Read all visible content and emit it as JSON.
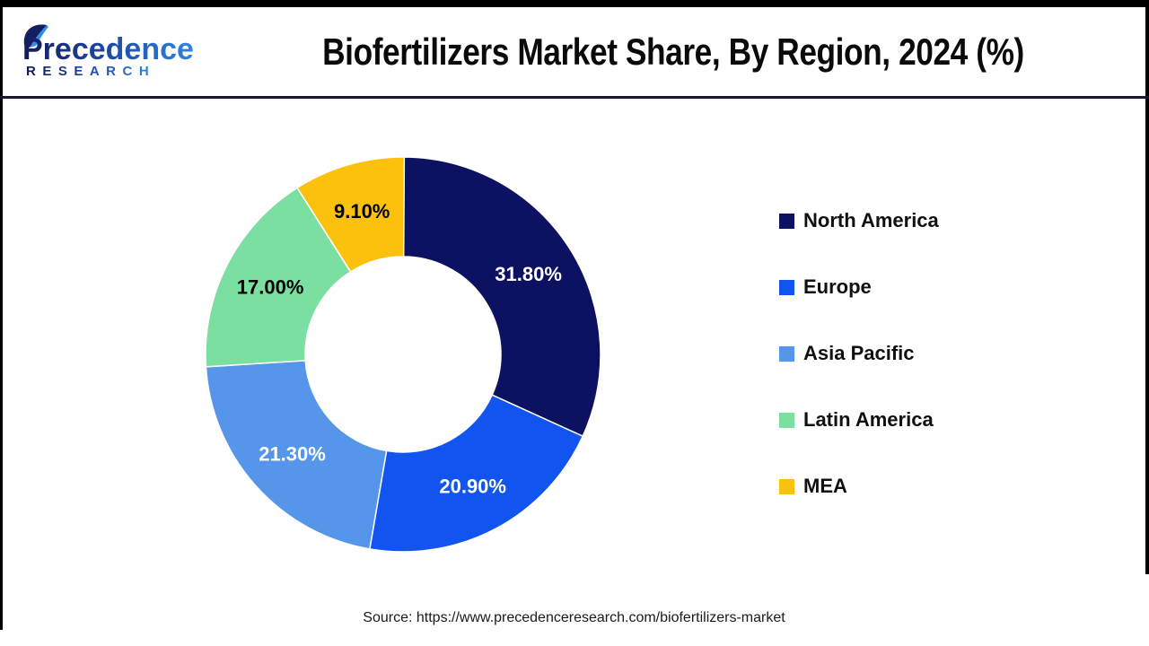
{
  "header": {
    "logo": {
      "brand_line1": "Precedence",
      "brand_line2": "RESEARCH"
    },
    "title": "Biofertilizers Market Share, By Region, 2024 (%)"
  },
  "chart_data": {
    "type": "pie",
    "subtype": "donut",
    "title": "Biofertilizers Market Share, By Region, 2024 (%)",
    "unit": "%",
    "legend_position": "right",
    "labels_on_slices": true,
    "start_angle_deg": -90,
    "direction": "clockwise",
    "categories": [
      "North America",
      "Europe",
      "Asia Pacific",
      "Latin America",
      "MEA"
    ],
    "values": [
      31.8,
      20.9,
      21.3,
      17.0,
      9.1
    ],
    "slices": [
      {
        "label": "North America",
        "value": 31.8,
        "display": "31.80%",
        "color": "#0d1161",
        "label_color": "#ffffff"
      },
      {
        "label": "Europe",
        "value": 20.9,
        "display": "20.90%",
        "color": "#1254f0",
        "label_color": "#ffffff"
      },
      {
        "label": "Asia Pacific",
        "value": 21.3,
        "display": "21.30%",
        "color": "#5596ea",
        "label_color": "#ffffff"
      },
      {
        "label": "Latin America",
        "value": 17.0,
        "display": "17.00%",
        "color": "#7cdfa2",
        "label_color": "#000000"
      },
      {
        "label": "MEA",
        "value": 9.1,
        "display": "9.10%",
        "color": "#fcc10d",
        "label_color": "#000000"
      }
    ]
  },
  "footer": {
    "source": "Source: https://www.precedenceresearch.com/biofertilizers-market"
  },
  "colors": {
    "header_rule": "#15153d",
    "frame": "#000000",
    "background": "#ffffff",
    "brand_navy": "#141b5e",
    "brand_blue": "#2e86e0"
  }
}
